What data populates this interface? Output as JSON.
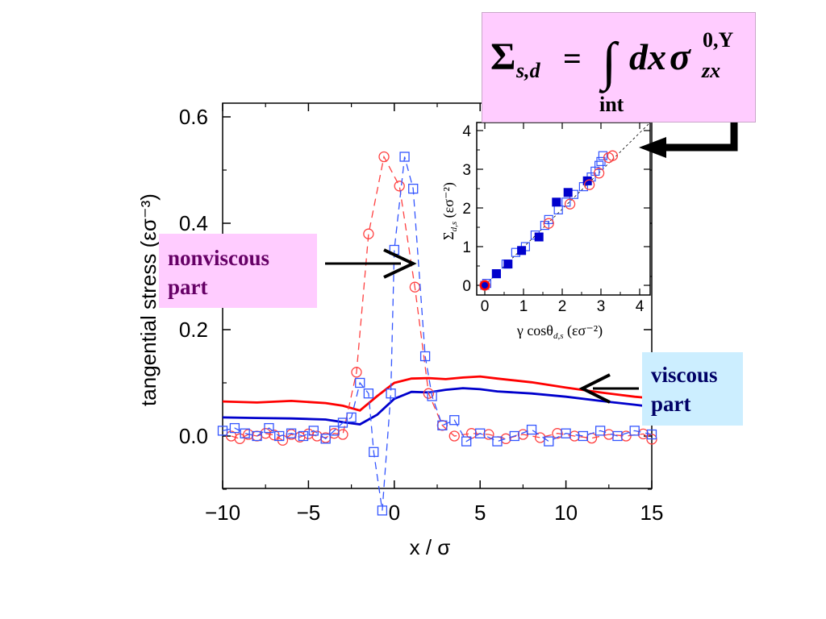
{
  "formula": {
    "sigma": "Σ",
    "sub": "s,d",
    "equals": "=",
    "integral": "∫",
    "dx": "dx",
    "sigma_lower": "σ",
    "sup": "0,Y",
    "sub2": "zx",
    "limit": "int"
  },
  "annotations": {
    "nonviscous": [
      "nonviscous",
      "part"
    ],
    "viscous": [
      "viscous",
      "part"
    ]
  },
  "colors": {
    "red": "#ff0000",
    "blue": "#0000cc",
    "open_red": "#ff4040",
    "open_blue": "#3355ff",
    "formula_bg": "#ffccff",
    "viscous_bg": "#cceeff"
  },
  "chart_data": [
    {
      "type": "line",
      "xlabel": "x / σ",
      "ylabel": "tangential stress   (εσ⁻³)",
      "xlim": [
        -10,
        15
      ],
      "ylim": [
        -0.1,
        0.62
      ],
      "xticks": [
        "−10",
        "−5",
        "0",
        "5",
        "10",
        "15"
      ],
      "yticks": [
        "0.0",
        "0.2",
        "0.4",
        "0.6"
      ],
      "series": [
        {
          "style": "solid-red",
          "x": [
            -10,
            -8,
            -6,
            -4,
            -3,
            -2,
            -1,
            0,
            1,
            2,
            3,
            4,
            5,
            6,
            8,
            10,
            12,
            14,
            15
          ],
          "y": [
            0.065,
            0.063,
            0.066,
            0.062,
            0.057,
            0.048,
            0.075,
            0.1,
            0.108,
            0.109,
            0.107,
            0.11,
            0.112,
            0.108,
            0.101,
            0.091,
            0.082,
            0.074,
            0.071
          ]
        },
        {
          "style": "solid-blue",
          "x": [
            -10,
            -8,
            -6,
            -4,
            -3,
            -2,
            -1,
            0,
            1,
            2,
            3,
            4,
            5,
            6,
            8,
            10,
            12,
            14,
            15
          ],
          "y": [
            0.035,
            0.034,
            0.033,
            0.031,
            0.026,
            0.022,
            0.04,
            0.07,
            0.083,
            0.082,
            0.087,
            0.09,
            0.088,
            0.084,
            0.08,
            0.074,
            0.066,
            0.059,
            0.055
          ]
        },
        {
          "style": "dashed-red-circles",
          "x": [
            -9.5,
            -9,
            -8.5,
            -8,
            -7.5,
            -7,
            -6.5,
            -6,
            -5.5,
            -5,
            -4.5,
            -4,
            -3.5,
            -3,
            -2.2,
            -1.5,
            -0.6,
            0.3,
            1.2,
            2.0,
            2.8,
            3.5,
            4.5,
            5.5,
            6.5,
            7.5,
            8.5,
            9.5,
            10.5,
            11.5,
            12.5,
            13.5,
            14.5,
            15
          ],
          "y": [
            0.0,
            -0.005,
            0.003,
            0.0,
            0.005,
            0.002,
            -0.008,
            0.003,
            -0.002,
            0.004,
            0.0,
            -0.003,
            0.005,
            0.003,
            0.12,
            0.38,
            0.525,
            0.47,
            0.28,
            0.08,
            0.02,
            0.0,
            0.005,
            0.003,
            -0.005,
            0.003,
            -0.003,
            0.005,
            0.0,
            -0.004,
            0.003,
            0.0,
            0.004,
            -0.006
          ]
        },
        {
          "style": "dashed-blue-squares",
          "x": [
            -10,
            -9.3,
            -8.7,
            -8,
            -7.3,
            -6.7,
            -6,
            -5.3,
            -4.7,
            -4,
            -3.5,
            -3,
            -2.5,
            -2,
            -1.5,
            -1.2,
            -0.7,
            -0.2,
            0.0,
            0.6,
            1.1,
            1.8,
            2.2,
            2.8,
            3.5,
            4.2,
            5,
            6,
            7,
            8,
            9,
            10,
            11,
            12,
            13,
            14,
            15
          ],
          "y": [
            0.01,
            0.015,
            0.005,
            0.0,
            0.015,
            0.0,
            0.005,
            0.0,
            0.01,
            -0.005,
            0.01,
            0.025,
            0.035,
            0.1,
            0.08,
            -0.03,
            -0.14,
            0.08,
            0.35,
            0.525,
            0.465,
            0.15,
            0.075,
            0.02,
            0.03,
            -0.01,
            0.005,
            -0.01,
            0.0,
            0.012,
            -0.01,
            0.005,
            0.0,
            0.01,
            0.0,
            0.01,
            0.003
          ]
        }
      ]
    },
    {
      "type": "scatter",
      "xlabel": "γ cosθ",
      "xlabel_sub": "d,s",
      "xlabel_units": "(εσ⁻²)",
      "ylabel": "Σ",
      "ylabel_sub": "d,s",
      "ylabel_units": "(εσ⁻²)",
      "xlim": [
        -0.1,
        4
      ],
      "ylim": [
        -0.1,
        4
      ],
      "xticks": [
        "0",
        "1",
        "2",
        "3",
        "4"
      ],
      "yticks": [
        "0",
        "1",
        "2",
        "3",
        "4"
      ],
      "series": [
        {
          "style": "open-blue-squares",
          "x": [
            0,
            0.05,
            0.3,
            0.55,
            0.8,
            1.05,
            1.3,
            1.55,
            1.65,
            1.9,
            2.1,
            2.3,
            2.55,
            2.75,
            2.85,
            2.95,
            3.0,
            3.05
          ],
          "y": [
            0,
            0.05,
            0.3,
            0.55,
            0.85,
            1.0,
            1.3,
            1.55,
            1.7,
            1.95,
            2.15,
            2.35,
            2.55,
            2.8,
            2.95,
            3.1,
            3.2,
            3.35
          ]
        },
        {
          "style": "filled-blue-squares",
          "x": [
            0.3,
            0.6,
            0.95,
            1.4,
            1.85,
            2.15,
            2.65
          ],
          "y": [
            0.3,
            0.55,
            0.9,
            1.25,
            2.15,
            2.4,
            2.7
          ]
        },
        {
          "style": "open-red-circles",
          "x": [
            0,
            1.65,
            2.2,
            2.7,
            2.95,
            3.2,
            3.3
          ],
          "y": [
            0,
            1.6,
            2.1,
            2.6,
            2.9,
            3.3,
            3.35
          ]
        }
      ]
    }
  ]
}
